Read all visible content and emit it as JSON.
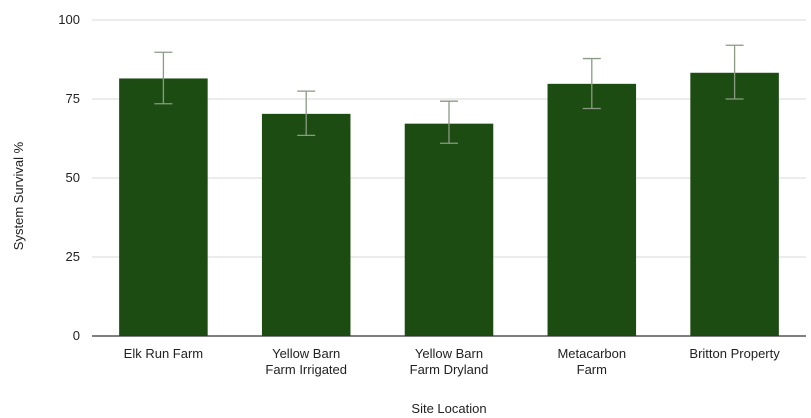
{
  "chart_data": {
    "type": "bar",
    "categories": [
      [
        "Elk Run Farm"
      ],
      [
        "Yellow Barn",
        "Farm Irrigated"
      ],
      [
        "Yellow Barn",
        "Farm Dryland"
      ],
      [
        "Metacarbon",
        "Farm"
      ],
      [
        "Britton Property"
      ]
    ],
    "values": [
      81.5,
      70.3,
      67.2,
      79.8,
      83.3
    ],
    "error_low": [
      73.5,
      63.5,
      61.0,
      72.0,
      75.0
    ],
    "error_high": [
      89.8,
      77.5,
      74.3,
      87.8,
      92.0
    ],
    "xlabel": "Site Location",
    "ylabel": "System Survival %",
    "ylim": [
      0,
      100
    ],
    "yticks": [
      0,
      25,
      50,
      75,
      100
    ],
    "grid": true,
    "colors": {
      "bar": "#1d4c12",
      "error_bar": "#8a9a84",
      "grid": "#d9d9d9",
      "axis": "#333333"
    }
  }
}
